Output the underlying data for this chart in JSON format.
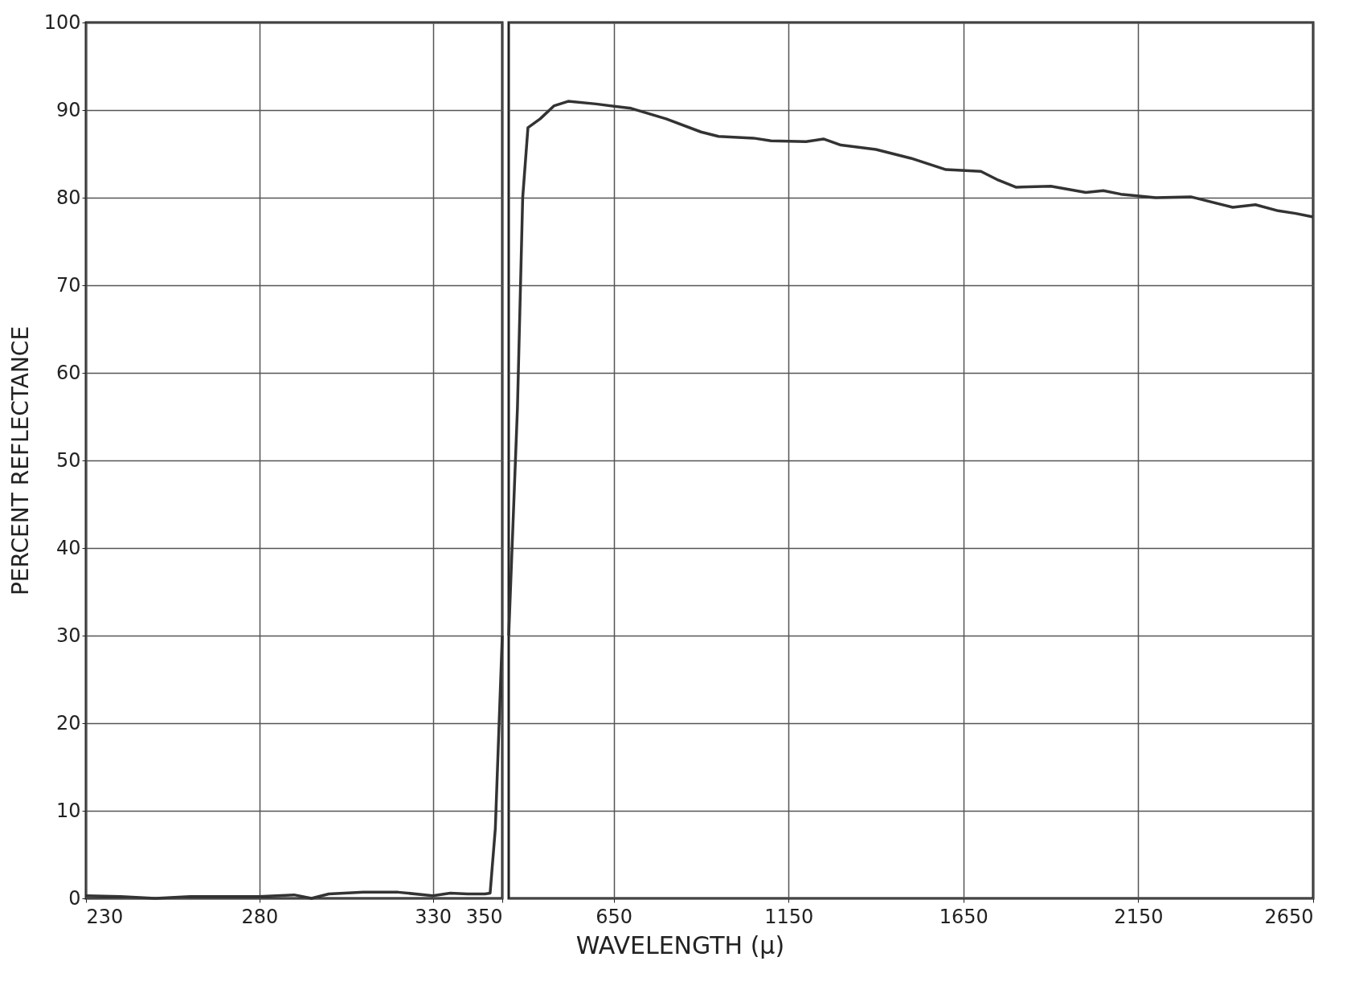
{
  "chart_data": [
    {
      "type": "line",
      "xlabel": "WAVELENGTH (μ)",
      "ylabel": "PERCENT REFLECTANCE",
      "xlim": [
        230,
        350
      ],
      "xticks": [
        230,
        280,
        330,
        350
      ],
      "ylim": [
        0,
        100
      ],
      "yticks": [
        0,
        10,
        20,
        30,
        40,
        50,
        60,
        70,
        80,
        90,
        100
      ],
      "grid": true,
      "marker": "none",
      "line_style": "solid",
      "series": [
        {
          "color": "#333333",
          "x": [
            230,
            240,
            250,
            260,
            270,
            280,
            290,
            295,
            300,
            310,
            320,
            330,
            335,
            340,
            345,
            346.5,
            348,
            350
          ],
          "values": [
            0.3,
            0.2,
            0,
            0.2,
            0.2,
            0.2,
            0.4,
            0,
            0.5,
            0.7,
            0.7,
            0.3,
            0.6,
            0.5,
            0.5,
            0.6,
            8,
            30
          ]
        }
      ]
    },
    {
      "type": "line",
      "xlim": [
        350,
        2650
      ],
      "xticks": [
        650,
        1150,
        1650,
        2150,
        2650
      ],
      "ylim": [
        0,
        100
      ],
      "yticks": [
        0,
        10,
        20,
        30,
        40,
        50,
        60,
        70,
        80,
        90,
        100
      ],
      "grid": true,
      "tick_labels": "x",
      "marker": "none",
      "line_style": "solid",
      "series": [
        {
          "color": "#333333",
          "x": [
            350,
            375,
            390,
            405,
            440,
            480,
            520,
            600,
            700,
            800,
            900,
            950,
            1050,
            1100,
            1200,
            1250,
            1300,
            1400,
            1500,
            1600,
            1700,
            1750,
            1800,
            1900,
            2000,
            2050,
            2100,
            2200,
            2300,
            2420,
            2485,
            2550,
            2600,
            2650
          ],
          "values": [
            30,
            56,
            80,
            88,
            89,
            90.5,
            91,
            90.7,
            90.2,
            89,
            87.5,
            87,
            86.8,
            86.5,
            86.4,
            86.7,
            86,
            85.5,
            84.5,
            83.2,
            83,
            82,
            81.2,
            81.3,
            80.6,
            80.8,
            80.4,
            80,
            80.1,
            78.9,
            79.2,
            78.5,
            78.2,
            77.8
          ]
        }
      ]
    }
  ]
}
